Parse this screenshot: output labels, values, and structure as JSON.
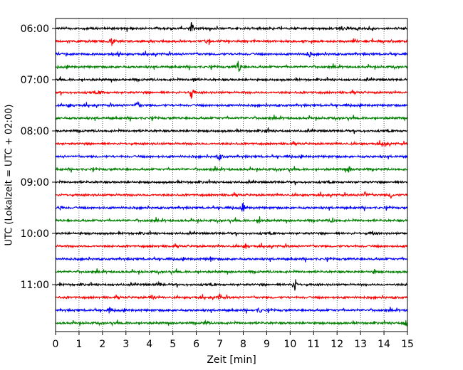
{
  "chart_data": {
    "type": "line",
    "title": "",
    "xlabel": "Zeit  [min]",
    "ylabel": "UTC (Lokalzeit = UTC + 02:00)",
    "xlim": [
      0,
      15
    ],
    "x_ticks": [
      "0",
      "1",
      "2",
      "3",
      "4",
      "5",
      "6",
      "7",
      "8",
      "9",
      "10",
      "11",
      "12",
      "13",
      "14",
      "15"
    ],
    "y_ticks": [
      {
        "label": "06:00",
        "row": 0
      },
      {
        "label": "07:00",
        "row": 4
      },
      {
        "label": "08:00",
        "row": 8
      },
      {
        "label": "09:00",
        "row": 12
      },
      {
        "label": "10:00",
        "row": 16
      },
      {
        "label": "11:00",
        "row": 20
      }
    ],
    "grid": "vertical dotted at each minute",
    "row_count": 24,
    "row_minutes": 15,
    "colors": [
      "#000000",
      "#ff0000",
      "#0000ff",
      "#008000"
    ],
    "events": [
      {
        "row": 0,
        "minute": 5.8,
        "amplitude": 0.9
      },
      {
        "row": 0,
        "minute": 12.2,
        "amplitude": 0.4
      },
      {
        "row": 1,
        "minute": 2.4,
        "amplitude": 0.6
      },
      {
        "row": 1,
        "minute": 6.5,
        "amplitude": 0.3
      },
      {
        "row": 2,
        "minute": 10.8,
        "amplitude": 0.5
      },
      {
        "row": 3,
        "minute": 7.8,
        "amplitude": 1.2
      },
      {
        "row": 4,
        "minute": 5.9,
        "amplitude": 0.3
      },
      {
        "row": 5,
        "minute": 5.8,
        "amplitude": 1.0
      },
      {
        "row": 5,
        "minute": 1.9,
        "amplitude": 0.3
      },
      {
        "row": 6,
        "minute": 3.5,
        "amplitude": 0.6
      },
      {
        "row": 6,
        "minute": 0.6,
        "amplitude": 0.3
      },
      {
        "row": 8,
        "minute": 9.0,
        "amplitude": 0.3
      },
      {
        "row": 9,
        "minute": 14.0,
        "amplitude": 0.5
      },
      {
        "row": 10,
        "minute": 7.0,
        "amplitude": 0.6
      },
      {
        "row": 11,
        "minute": 12.5,
        "amplitude": 0.5
      },
      {
        "row": 13,
        "minute": 13.2,
        "amplitude": 0.5
      },
      {
        "row": 13,
        "minute": 14.3,
        "amplitude": 0.4
      },
      {
        "row": 14,
        "minute": 8.0,
        "amplitude": 0.6
      },
      {
        "row": 14,
        "minute": 0.2,
        "amplitude": 0.4
      },
      {
        "row": 15,
        "minute": 8.7,
        "amplitude": 0.5
      },
      {
        "row": 15,
        "minute": 11.8,
        "amplitude": 0.4
      },
      {
        "row": 16,
        "minute": 13.5,
        "amplitude": 0.3
      },
      {
        "row": 17,
        "minute": 8.1,
        "amplitude": 0.4
      },
      {
        "row": 18,
        "minute": 6.6,
        "amplitude": 0.3
      },
      {
        "row": 19,
        "minute": 13.6,
        "amplitude": 0.3
      },
      {
        "row": 20,
        "minute": 10.2,
        "amplitude": 1.1
      },
      {
        "row": 20,
        "minute": 4.4,
        "amplitude": 0.3
      },
      {
        "row": 21,
        "minute": 7.0,
        "amplitude": 0.5
      },
      {
        "row": 21,
        "minute": 4.1,
        "amplitude": 0.3
      },
      {
        "row": 22,
        "minute": 2.3,
        "amplitude": 0.4
      },
      {
        "row": 22,
        "minute": 8.7,
        "amplitude": 0.4
      },
      {
        "row": 23,
        "minute": 14.9,
        "amplitude": 0.6
      },
      {
        "row": 23,
        "minute": 6.4,
        "amplitude": 0.3
      }
    ]
  }
}
